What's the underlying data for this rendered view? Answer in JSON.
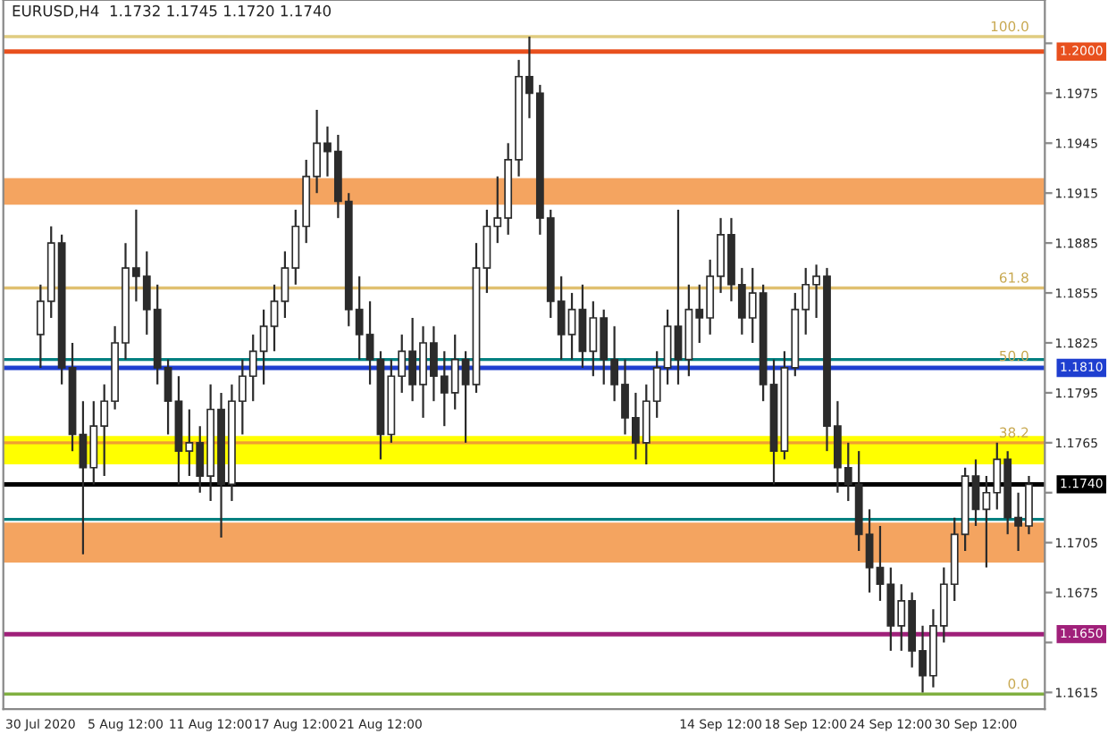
{
  "chart_data": {
    "type": "candlestick",
    "title": "EURUSD,H4  1.1732 1.1745 1.1720 1.1740",
    "categories": [
      "30 Jul 2020",
      null,
      null,
      null,
      null,
      null,
      null,
      null,
      "5 Aug 12:00",
      null,
      null,
      null,
      null,
      null,
      null,
      null,
      "11 Aug 12:00",
      null,
      null,
      null,
      null,
      null,
      null,
      null,
      "17 Aug 12:00",
      null,
      null,
      null,
      null,
      null,
      null,
      null,
      "21 Aug 12:00",
      null,
      null,
      null,
      null,
      null,
      null,
      null,
      null,
      null,
      null,
      null,
      null,
      null,
      null,
      null,
      null,
      null,
      null,
      null,
      null,
      null,
      null,
      null,
      null,
      null,
      null,
      null,
      null,
      null,
      null,
      null,
      "14 Sep 12:00",
      null,
      null,
      null,
      null,
      null,
      null,
      null,
      "18 Sep 12:00",
      null,
      null,
      null,
      null,
      null,
      null,
      null,
      "24 Sep 12:00",
      null,
      null,
      null,
      null,
      null,
      null,
      null,
      "30 Sep 12:00",
      null,
      null,
      null,
      null,
      null
    ],
    "ohlc": [
      [
        1.183,
        1.186,
        1.181,
        1.185
      ],
      [
        1.185,
        1.1895,
        1.184,
        1.1885
      ],
      [
        1.1885,
        1.189,
        1.18,
        1.181
      ],
      [
        1.181,
        1.1825,
        1.176,
        1.177
      ],
      [
        1.177,
        1.179,
        1.1698,
        1.175
      ],
      [
        1.175,
        1.179,
        1.174,
        1.1775
      ],
      [
        1.1775,
        1.18,
        1.1745,
        1.179
      ],
      [
        1.179,
        1.1835,
        1.1785,
        1.1825
      ],
      [
        1.1825,
        1.1885,
        1.1815,
        1.187
      ],
      [
        1.187,
        1.1905,
        1.185,
        1.1865
      ],
      [
        1.1865,
        1.188,
        1.183,
        1.1845
      ],
      [
        1.1845,
        1.186,
        1.18,
        1.181
      ],
      [
        1.181,
        1.1815,
        1.177,
        1.179
      ],
      [
        1.179,
        1.1805,
        1.174,
        1.176
      ],
      [
        1.176,
        1.1785,
        1.1745,
        1.1765
      ],
      [
        1.1765,
        1.1775,
        1.1735,
        1.1745
      ],
      [
        1.1745,
        1.18,
        1.173,
        1.1785
      ],
      [
        1.1785,
        1.1795,
        1.1708,
        1.174
      ],
      [
        1.174,
        1.18,
        1.173,
        1.179
      ],
      [
        1.179,
        1.1815,
        1.177,
        1.1805
      ],
      [
        1.1805,
        1.183,
        1.179,
        1.182
      ],
      [
        1.182,
        1.1845,
        1.18,
        1.1835
      ],
      [
        1.1835,
        1.186,
        1.182,
        1.185
      ],
      [
        1.185,
        1.188,
        1.184,
        1.187
      ],
      [
        1.187,
        1.1905,
        1.186,
        1.1895
      ],
      [
        1.1895,
        1.1935,
        1.1885,
        1.1925
      ],
      [
        1.1925,
        1.1965,
        1.1915,
        1.1945
      ],
      [
        1.1945,
        1.1955,
        1.1925,
        1.194
      ],
      [
        1.194,
        1.195,
        1.19,
        1.191
      ],
      [
        1.191,
        1.1915,
        1.1835,
        1.1845
      ],
      [
        1.1845,
        1.1865,
        1.1815,
        1.183
      ],
      [
        1.183,
        1.185,
        1.18,
        1.1815
      ],
      [
        1.1815,
        1.182,
        1.1755,
        1.177
      ],
      [
        1.177,
        1.1815,
        1.1765,
        1.1805
      ],
      [
        1.1805,
        1.183,
        1.1795,
        1.182
      ],
      [
        1.182,
        1.184,
        1.179,
        1.18
      ],
      [
        1.18,
        1.1835,
        1.178,
        1.1825
      ],
      [
        1.1825,
        1.1835,
        1.179,
        1.1805
      ],
      [
        1.1805,
        1.182,
        1.1775,
        1.1795
      ],
      [
        1.1795,
        1.183,
        1.1785,
        1.1815
      ],
      [
        1.1815,
        1.182,
        1.1765,
        1.18
      ],
      [
        1.18,
        1.1885,
        1.1795,
        1.187
      ],
      [
        1.187,
        1.1905,
        1.1855,
        1.1895
      ],
      [
        1.1895,
        1.1925,
        1.1885,
        1.19
      ],
      [
        1.19,
        1.1945,
        1.189,
        1.1935
      ],
      [
        1.1935,
        1.1995,
        1.1925,
        1.1985
      ],
      [
        1.1985,
        1.2009,
        1.196,
        1.1975
      ],
      [
        1.1975,
        1.198,
        1.189,
        1.19
      ],
      [
        1.19,
        1.1905,
        1.184,
        1.185
      ],
      [
        1.185,
        1.1865,
        1.1815,
        1.183
      ],
      [
        1.183,
        1.1855,
        1.1815,
        1.1845
      ],
      [
        1.1845,
        1.186,
        1.181,
        1.182
      ],
      [
        1.182,
        1.185,
        1.1805,
        1.184
      ],
      [
        1.184,
        1.1845,
        1.18,
        1.1815
      ],
      [
        1.1815,
        1.1835,
        1.179,
        1.18
      ],
      [
        1.18,
        1.1815,
        1.177,
        1.178
      ],
      [
        1.178,
        1.1795,
        1.1755,
        1.1765
      ],
      [
        1.1765,
        1.18,
        1.1752,
        1.179
      ],
      [
        1.179,
        1.182,
        1.178,
        1.181
      ],
      [
        1.181,
        1.1845,
        1.18,
        1.1835
      ],
      [
        1.1835,
        1.1905,
        1.18,
        1.1815
      ],
      [
        1.1815,
        1.186,
        1.1805,
        1.1845
      ],
      [
        1.1845,
        1.186,
        1.1825,
        1.184
      ],
      [
        1.184,
        1.1875,
        1.183,
        1.1865
      ],
      [
        1.1865,
        1.19,
        1.1855,
        1.189
      ],
      [
        1.189,
        1.19,
        1.185,
        1.186
      ],
      [
        1.186,
        1.187,
        1.183,
        1.184
      ],
      [
        1.184,
        1.187,
        1.1825,
        1.1855
      ],
      [
        1.1855,
        1.186,
        1.179,
        1.18
      ],
      [
        1.18,
        1.1815,
        1.174,
        1.176
      ],
      [
        1.176,
        1.182,
        1.1755,
        1.181
      ],
      [
        1.181,
        1.1855,
        1.1805,
        1.1845
      ],
      [
        1.1845,
        1.187,
        1.183,
        1.186
      ],
      [
        1.186,
        1.1872,
        1.184,
        1.1865
      ],
      [
        1.1865,
        1.187,
        1.176,
        1.1775
      ],
      [
        1.1775,
        1.179,
        1.1735,
        1.175
      ],
      [
        1.175,
        1.1765,
        1.173,
        1.174
      ],
      [
        1.174,
        1.176,
        1.17,
        1.171
      ],
      [
        1.171,
        1.1725,
        1.1675,
        1.169
      ],
      [
        1.169,
        1.1715,
        1.167,
        1.168
      ],
      [
        1.168,
        1.169,
        1.164,
        1.1655
      ],
      [
        1.1655,
        1.168,
        1.164,
        1.167
      ],
      [
        1.167,
        1.1675,
        1.163,
        1.164
      ],
      [
        1.164,
        1.1655,
        1.1615,
        1.1625
      ],
      [
        1.1625,
        1.1665,
        1.1618,
        1.1655
      ],
      [
        1.1655,
        1.169,
        1.1645,
        1.168
      ],
      [
        1.168,
        1.172,
        1.167,
        1.171
      ],
      [
        1.171,
        1.175,
        1.17,
        1.1745
      ],
      [
        1.1745,
        1.1755,
        1.1715,
        1.1725
      ],
      [
        1.1725,
        1.1745,
        1.169,
        1.1735
      ],
      [
        1.1735,
        1.1765,
        1.1725,
        1.1755
      ],
      [
        1.1755,
        1.176,
        1.171,
        1.172
      ],
      [
        1.172,
        1.1735,
        1.17,
        1.1715
      ],
      [
        1.1715,
        1.1745,
        1.171,
        1.174
      ]
    ],
    "ylim": [
      1.1605,
      1.2031
    ],
    "yticks": [
      {
        "value": 1.2005,
        "label": null
      },
      {
        "value": 1.1975,
        "label": "1.1975"
      },
      {
        "value": 1.1945,
        "label": "1.1945"
      },
      {
        "value": 1.1915,
        "label": "1.1915"
      },
      {
        "value": 1.1885,
        "label": "1.1885"
      },
      {
        "value": 1.1855,
        "label": "1.1855"
      },
      {
        "value": 1.1825,
        "label": "1.1825"
      },
      {
        "value": 1.1795,
        "label": "1.1795"
      },
      {
        "value": 1.1765,
        "label": "1.1765"
      },
      {
        "value": 1.1735,
        "label": null
      },
      {
        "value": 1.1705,
        "label": "1.1705"
      },
      {
        "value": 1.1675,
        "label": "1.1675"
      },
      {
        "value": 1.1645,
        "label": null
      },
      {
        "value": 1.1615,
        "label": "1.1615"
      }
    ],
    "bands": [
      {
        "axis": "y",
        "from": 1.1908,
        "to": 1.1924,
        "color": "#f4a460"
      },
      {
        "axis": "y",
        "from": 1.1752,
        "to": 1.1769,
        "color": "#ffff00"
      },
      {
        "axis": "y",
        "from": 1.1693,
        "to": 1.1717,
        "color": "#f4a460"
      }
    ],
    "ref_lines": [
      {
        "axis": "y",
        "value": 1.2009,
        "color": "#e0cc80"
      },
      {
        "axis": "y",
        "value": 1.1858,
        "color": "#e0c070"
      },
      {
        "axis": "y",
        "value": 1.1765,
        "color": "#f0a030"
      },
      {
        "axis": "y",
        "value": 1.1614,
        "color": "#80b040"
      },
      {
        "axis": "y",
        "value": 1.1815,
        "color": "#008080"
      },
      {
        "axis": "y",
        "value": 1.1719,
        "color": "#008080"
      },
      {
        "axis": "y",
        "value": 1.2,
        "label": "1.2000",
        "color": "#e8501e"
      },
      {
        "axis": "y",
        "value": 1.181,
        "label": "1.1810",
        "color": "#1f3fd0"
      },
      {
        "axis": "y",
        "value": 1.165,
        "label": "1.1650",
        "color": "#a0207a"
      },
      {
        "axis": "y",
        "value": 1.174,
        "label": "1.1740",
        "color": "#000000"
      }
    ],
    "annotations": [
      {
        "text": "100.0",
        "y": 1.2009
      },
      {
        "text": "61.8",
        "y": 1.1858
      },
      {
        "text": "50.0",
        "y": 1.1811
      },
      {
        "text": "38.2",
        "y": 1.1765
      },
      {
        "text": "0.0",
        "y": 1.1614
      }
    ],
    "grid": false,
    "legend": false
  }
}
